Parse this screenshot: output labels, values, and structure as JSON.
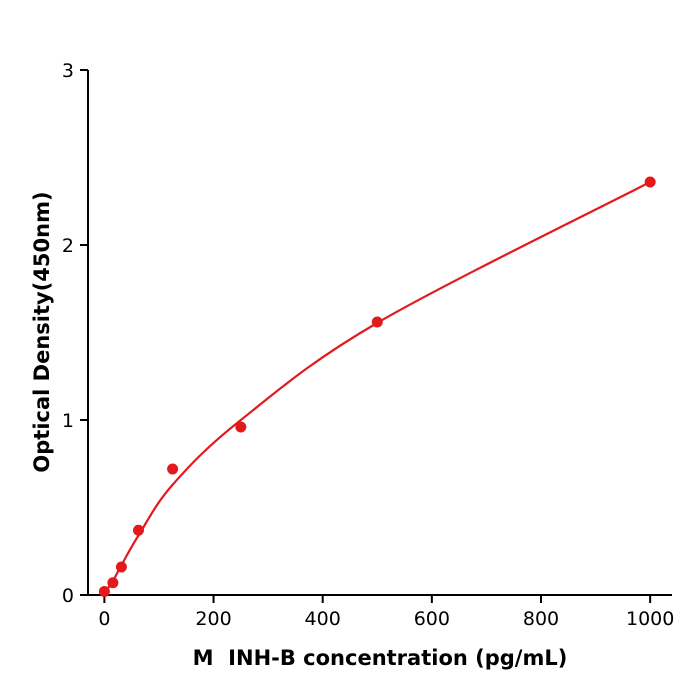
{
  "chart_data": {
    "type": "scatter",
    "title": "",
    "xlabel": "M  INH-B concentration (pg/mL)",
    "ylabel": "Optical Density(450nm)",
    "x": [
      0,
      15.6,
      31.2,
      62.5,
      125,
      250,
      500,
      1000
    ],
    "y": [
      0.02,
      0.07,
      0.16,
      0.37,
      0.72,
      0.96,
      1.56,
      2.36
    ],
    "curve_x": [
      0,
      15.6,
      31.2,
      62.5,
      125,
      250,
      500,
      1000
    ],
    "curve_y": [
      0.01,
      0.08,
      0.17,
      0.34,
      0.63,
      1.0,
      1.555,
      2.36
    ],
    "xticks": [
      0,
      200,
      400,
      600,
      800,
      1000
    ],
    "yticks": [
      0,
      1,
      2,
      3
    ],
    "xlim": [
      -30,
      1040
    ],
    "ylim": [
      0,
      3
    ],
    "grid": false,
    "legend": "none",
    "point_color": "#e31a1c",
    "line_color": "#e31a1c",
    "axis_color": "#000000",
    "background_color": "#ffffff",
    "marker_radius": 5.5
  }
}
